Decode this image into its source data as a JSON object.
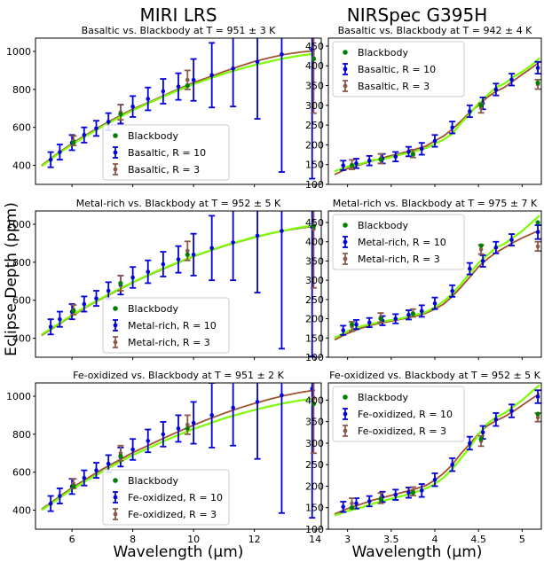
{
  "figure": {
    "col_titles": [
      "MIRI LRS",
      "NIRSpec G395H"
    ],
    "ylabel": "Eclipse Depth (ppm)",
    "xlabel": "Wavelength (μm)"
  },
  "colors": {
    "model_green": "#7cfc00",
    "model_brown": "#a0522d",
    "r10_blue": "#0000dd",
    "r3_brown": "#8b5a4a",
    "bb_green": "#008000"
  },
  "chart_data": [
    {
      "type": "line",
      "title": "Basaltic vs. Blackbody at T = 951 ± 3 K",
      "xlim": [
        4.8,
        14.2
      ],
      "ylim": [
        300,
        1070
      ],
      "xticks": [
        6,
        8,
        10,
        12,
        14
      ],
      "yticks": [
        400,
        600,
        800,
        1000
      ],
      "legend": [
        "Blackbody",
        "Basaltic, R = 10",
        "Basaltic, R = 3"
      ],
      "legend_loc": "lower-center",
      "model_x": [
        5.0,
        5.5,
        6.0,
        6.5,
        7.0,
        7.5,
        8.0,
        8.5,
        9.0,
        9.5,
        10.0,
        10.5,
        11.0,
        11.5,
        12.0,
        12.5,
        13.0,
        13.5,
        14.0
      ],
      "model_green": [
        395,
        455,
        510,
        558,
        605,
        648,
        690,
        726,
        762,
        796,
        828,
        856,
        883,
        906,
        928,
        947,
        964,
        978,
        988
      ],
      "model_brown": [
        400,
        460,
        516,
        564,
        612,
        655,
        697,
        730,
        766,
        802,
        836,
        864,
        894,
        921,
        947,
        967,
        984,
        996,
        1004
      ],
      "r10": {
        "x": [
          5.3,
          5.6,
          6.0,
          6.4,
          6.8,
          7.2,
          7.6,
          8.0,
          8.5,
          9.0,
          9.5,
          10.0,
          10.6,
          11.3,
          12.1,
          12.9,
          13.9
        ],
        "y": [
          430,
          470,
          520,
          560,
          595,
          630,
          670,
          710,
          750,
          790,
          815,
          850,
          875,
          910,
          945,
          985,
          1010
        ],
        "err": [
          40,
          40,
          40,
          40,
          40,
          45,
          50,
          55,
          60,
          65,
          70,
          110,
          170,
          200,
          300,
          620,
          680
        ]
      },
      "r3": {
        "x": [
          6.05,
          7.6,
          9.8,
          13.95
        ],
        "y": [
          530,
          680,
          850,
          965
        ],
        "err": [
          25,
          40,
          50,
          290
        ]
      },
      "bb": {
        "x": [
          6.05,
          7.6,
          9.8,
          13.95
        ],
        "y": [
          520,
          670,
          820,
          960
        ]
      }
    },
    {
      "type": "line",
      "title": "Basaltic vs. Blackbody at T = 942 ± 4 K",
      "xlim": [
        2.78,
        5.22
      ],
      "ylim": [
        100,
        470
      ],
      "xticks": [
        3.0,
        3.5,
        4.0,
        4.5,
        5.0
      ],
      "yticks": [
        100,
        150,
        200,
        250,
        300,
        350,
        400,
        450
      ],
      "legend": [
        "Blackbody",
        "Basaltic, R = 10",
        "Basaltic, R = 3"
      ],
      "legend_loc": "upper-left",
      "model_x": [
        2.85,
        3.0,
        3.15,
        3.3,
        3.45,
        3.6,
        3.75,
        3.9,
        4.0,
        4.1,
        4.2,
        4.3,
        4.4,
        4.5,
        4.6,
        4.7,
        4.8,
        4.9,
        5.0,
        5.1,
        5.2
      ],
      "model_green": [
        133,
        145,
        152,
        162,
        166,
        175,
        182,
        192,
        203,
        213,
        228,
        255,
        278,
        305,
        325,
        345,
        355,
        372,
        385,
        400,
        420
      ],
      "model_brown": [
        125,
        140,
        150,
        160,
        170,
        178,
        187,
        197,
        210,
        222,
        240,
        260,
        282,
        300,
        320,
        335,
        346,
        362,
        378,
        393,
        410
      ],
      "r10": {
        "x": [
          2.95,
          3.1,
          3.25,
          3.4,
          3.55,
          3.7,
          3.85,
          4.0,
          4.2,
          4.4,
          4.55,
          4.7,
          4.88,
          5.18
        ],
        "y": [
          148,
          153,
          160,
          165,
          170,
          183,
          190,
          210,
          244,
          285,
          305,
          340,
          365,
          395
        ],
        "err": [
          12,
          12,
          12,
          12,
          12,
          12,
          15,
          15,
          15,
          15,
          15,
          15,
          15,
          15
        ]
      },
      "r3": {
        "x": [
          3.05,
          3.38,
          3.75,
          4.53,
          5.18
        ],
        "y": [
          150,
          165,
          178,
          293,
          353
        ],
        "err": [
          12,
          12,
          10,
          12,
          12
        ]
      },
      "bb": {
        "x": [
          3.05,
          3.38,
          3.75,
          4.53,
          5.18
        ],
        "y": [
          148,
          163,
          176,
          300,
          357
        ]
      }
    },
    {
      "type": "line",
      "title": "Metal-rich vs. Blackbody at T = 952 ± 5 K",
      "xlim": [
        4.8,
        14.2
      ],
      "ylim": [
        300,
        1070
      ],
      "xticks": [
        6,
        8,
        10,
        12,
        14
      ],
      "yticks": [
        400,
        600,
        800,
        1000
      ],
      "legend": [
        "Blackbody",
        "Metal-rich, R = 10",
        "Metal-rich, R = 3"
      ],
      "legend_loc": "lower-center",
      "model_x": [
        5.0,
        5.5,
        6.0,
        6.5,
        7.0,
        7.5,
        8.0,
        8.5,
        9.0,
        9.5,
        10.0,
        10.5,
        11.0,
        11.5,
        12.0,
        12.5,
        13.0,
        13.5,
        14.0
      ],
      "model_green": [
        420,
        470,
        522,
        570,
        613,
        655,
        695,
        732,
        768,
        800,
        832,
        860,
        887,
        910,
        932,
        951,
        968,
        983,
        995
      ],
      "model_brown": [
        415,
        466,
        518,
        567,
        610,
        652,
        693,
        730,
        765,
        798,
        830,
        858,
        885,
        908,
        930,
        950,
        967,
        980,
        990
      ],
      "r10": {
        "x": [
          5.3,
          5.6,
          6.0,
          6.4,
          6.8,
          7.2,
          7.6,
          8.0,
          8.5,
          9.0,
          9.5,
          10.0,
          10.6,
          11.3,
          12.1,
          12.9,
          13.9
        ],
        "y": [
          460,
          500,
          540,
          580,
          610,
          650,
          680,
          720,
          750,
          790,
          815,
          840,
          875,
          905,
          940,
          965,
          985
        ],
        "err": [
          40,
          40,
          40,
          40,
          40,
          45,
          50,
          55,
          60,
          65,
          70,
          110,
          170,
          200,
          300,
          620,
          680
        ]
      },
      "r3": {
        "x": [
          6.05,
          7.6,
          9.8,
          13.95
        ],
        "y": [
          550,
          690,
          860,
          975
        ],
        "err": [
          25,
          40,
          50,
          310
        ]
      },
      "bb": {
        "x": [
          6.05,
          7.6,
          9.8,
          13.95
        ],
        "y": [
          545,
          690,
          840,
          990
        ]
      }
    },
    {
      "type": "line",
      "title": "Metal-rich vs. Blackbody at T = 975 ± 7 K",
      "xlim": [
        2.78,
        5.22
      ],
      "ylim": [
        100,
        480
      ],
      "xticks": [
        3.0,
        3.5,
        4.0,
        4.5,
        5.0
      ],
      "yticks": [
        100,
        150,
        200,
        250,
        300,
        350,
        400,
        450
      ],
      "legend": [
        "Blackbody",
        "Metal-rich, R = 10",
        "Metal-rich, R = 3"
      ],
      "legend_loc": "upper-left",
      "model_x": [
        2.85,
        3.0,
        3.15,
        3.3,
        3.45,
        3.6,
        3.75,
        3.9,
        4.0,
        4.1,
        4.2,
        4.3,
        4.4,
        4.5,
        4.6,
        4.7,
        4.8,
        4.9,
        5.0,
        5.1,
        5.2
      ],
      "model_green": [
        150,
        168,
        180,
        188,
        195,
        200,
        208,
        218,
        230,
        245,
        265,
        290,
        318,
        345,
        365,
        385,
        395,
        412,
        428,
        448,
        468
      ],
      "model_brown": [
        145,
        162,
        175,
        185,
        192,
        198,
        205,
        215,
        225,
        238,
        258,
        282,
        308,
        335,
        355,
        372,
        385,
        398,
        410,
        420,
        430
      ],
      "r10": {
        "x": [
          2.95,
          3.1,
          3.25,
          3.4,
          3.55,
          3.7,
          3.85,
          4.0,
          4.2,
          4.4,
          4.55,
          4.7,
          4.88,
          5.18
        ],
        "y": [
          170,
          185,
          190,
          195,
          200,
          210,
          220,
          240,
          272,
          330,
          350,
          385,
          405,
          425
        ],
        "err": [
          12,
          12,
          12,
          12,
          12,
          12,
          15,
          15,
          15,
          15,
          15,
          15,
          15,
          18
        ]
      },
      "r3": {
        "x": [
          3.05,
          3.38,
          3.75,
          4.53,
          5.18
        ],
        "y": [
          180,
          203,
          215,
          380,
          388
        ],
        "err": [
          12,
          12,
          10,
          12,
          12
        ]
      },
      "bb": {
        "x": [
          3.05,
          3.38,
          3.75,
          4.53,
          5.18
        ],
        "y": [
          185,
          200,
          213,
          390,
          450
        ]
      }
    },
    {
      "type": "line",
      "title": "Fe-oxidized vs. Blackbody at T = 951 ± 2 K",
      "xlim": [
        4.8,
        14.2
      ],
      "ylim": [
        300,
        1070
      ],
      "xticks": [
        6,
        8,
        10,
        12,
        14
      ],
      "yticks": [
        400,
        600,
        800,
        1000
      ],
      "legend": [
        "Blackbody",
        "Fe-oxidized, R = 10",
        "Fe-oxidized, R = 3"
      ],
      "legend_loc": "lower-center",
      "model_x": [
        5.0,
        5.5,
        6.0,
        6.5,
        7.0,
        7.5,
        8.0,
        8.5,
        9.0,
        9.5,
        10.0,
        10.5,
        11.0,
        11.5,
        12.0,
        12.5,
        13.0,
        13.5,
        14.0
      ],
      "model_green": [
        400,
        455,
        510,
        558,
        604,
        648,
        690,
        726,
        762,
        796,
        828,
        856,
        883,
        906,
        928,
        947,
        964,
        978,
        988
      ],
      "model_brown": [
        405,
        462,
        518,
        568,
        616,
        660,
        703,
        740,
        778,
        814,
        848,
        880,
        910,
        938,
        962,
        984,
        1004,
        1020,
        1032
      ],
      "r10": {
        "x": [
          5.3,
          5.6,
          6.0,
          6.4,
          6.8,
          7.2,
          7.6,
          8.0,
          8.5,
          9.0,
          9.5,
          10.0,
          10.6,
          11.3,
          12.1,
          12.9,
          13.9
        ],
        "y": [
          435,
          475,
          525,
          570,
          610,
          645,
          680,
          720,
          765,
          800,
          830,
          860,
          900,
          940,
          970,
          1005,
          1040
        ],
        "err": [
          40,
          40,
          40,
          40,
          40,
          45,
          50,
          55,
          60,
          65,
          70,
          110,
          170,
          200,
          300,
          620,
          680
        ]
      },
      "r3": {
        "x": [
          6.05,
          7.6,
          9.8,
          13.95
        ],
        "y": [
          540,
          700,
          850,
          990
        ],
        "err": [
          25,
          40,
          50,
          290
        ]
      },
      "bb": {
        "x": [
          6.05,
          7.6,
          9.8,
          13.95
        ],
        "y": [
          525,
          685,
          830,
          960
        ]
      }
    },
    {
      "type": "line",
      "title": "Fe-oxidized vs. Blackbody at T = 952 ± 5 K",
      "xlim": [
        2.78,
        5.22
      ],
      "ylim": [
        100,
        440
      ],
      "xticks": [
        3.0,
        3.5,
        4.0,
        4.5,
        5.0
      ],
      "yticks": [
        100,
        150,
        200,
        250,
        300,
        350,
        400
      ],
      "legend": [
        "Blackbody",
        "Fe-oxidized, R = 10",
        "Fe-oxidized, R = 3"
      ],
      "legend_loc": "upper-left",
      "model_x": [
        2.85,
        3.0,
        3.15,
        3.3,
        3.45,
        3.6,
        3.75,
        3.9,
        4.0,
        4.1,
        4.2,
        4.3,
        4.4,
        4.5,
        4.6,
        4.7,
        4.8,
        4.9,
        5.0,
        5.1,
        5.2
      ],
      "model_green": [
        132,
        142,
        150,
        160,
        168,
        176,
        184,
        195,
        205,
        220,
        240,
        265,
        290,
        320,
        345,
        360,
        370,
        385,
        400,
        418,
        435
      ],
      "model_brown": [
        135,
        148,
        158,
        168,
        176,
        184,
        192,
        202,
        214,
        230,
        250,
        276,
        298,
        322,
        340,
        352,
        362,
        374,
        388,
        402,
        415
      ],
      "r10": {
        "x": [
          2.95,
          3.1,
          3.25,
          3.4,
          3.55,
          3.7,
          3.85,
          4.0,
          4.2,
          4.4,
          4.55,
          4.7,
          4.88,
          5.18
        ],
        "y": [
          152,
          160,
          165,
          175,
          180,
          185,
          190,
          215,
          250,
          300,
          325,
          355,
          375,
          408
        ],
        "err": [
          12,
          12,
          12,
          12,
          12,
          12,
          15,
          15,
          15,
          15,
          15,
          15,
          15,
          15
        ]
      },
      "r3": {
        "x": [
          3.05,
          3.38,
          3.75,
          4.53,
          5.18
        ],
        "y": [
          160,
          172,
          188,
          305,
          360
        ],
        "err": [
          12,
          12,
          10,
          12,
          10
        ]
      },
      "bb": {
        "x": [
          3.05,
          3.38,
          3.75,
          4.53,
          5.18
        ],
        "y": [
          150,
          170,
          185,
          310,
          368
        ]
      }
    }
  ]
}
